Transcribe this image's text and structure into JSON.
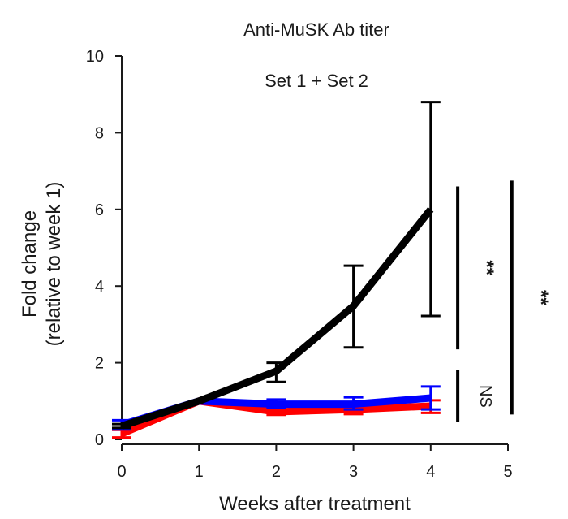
{
  "chart_data": {
    "type": "line",
    "title": "Anti-MuSK Ab titer",
    "subtitle": "Set 1 + Set 2",
    "xlabel": "Weeks after treatment",
    "ylabel_line1": "Fold change",
    "ylabel_line2": "(relative to week 1)",
    "xlim": [
      0,
      5
    ],
    "ylim": [
      0,
      10
    ],
    "xticks": [
      0,
      1,
      2,
      3,
      4,
      5
    ],
    "yticks": [
      0,
      2,
      4,
      6,
      8,
      10
    ],
    "xtick_labels": [
      "0",
      "1",
      "2",
      "3",
      "4",
      "5"
    ],
    "ytick_labels": [
      "0",
      "2",
      "4",
      "6",
      "8",
      "10"
    ],
    "grid": false,
    "legend": "none",
    "series": [
      {
        "color": "#ff0000",
        "x": [
          0,
          1,
          2,
          3,
          4
        ],
        "y": [
          0.15,
          1.0,
          0.72,
          0.78,
          0.87
        ],
        "err_low": [
          0.1,
          0.0,
          0.08,
          0.12,
          0.18
        ],
        "err_high": [
          0.1,
          0.0,
          0.1,
          0.14,
          0.15
        ]
      },
      {
        "color": "#0000ff",
        "x": [
          0,
          1,
          2,
          3,
          4
        ],
        "y": [
          0.38,
          1.0,
          0.92,
          0.92,
          1.08
        ],
        "err_low": [
          0.12,
          0.0,
          0.1,
          0.14,
          0.3
        ],
        "err_high": [
          0.12,
          0.0,
          0.12,
          0.18,
          0.3
        ]
      },
      {
        "color": "#000000",
        "x": [
          0,
          1,
          2,
          3,
          4
        ],
        "y": [
          0.35,
          1.0,
          1.78,
          3.48,
          6.0
        ],
        "err_low": [
          0.05,
          0.0,
          0.28,
          1.08,
          2.78
        ],
        "err_high": [
          0.05,
          0.0,
          0.22,
          1.05,
          2.8
        ]
      }
    ],
    "significance": [
      {
        "label": "**",
        "y_from": 2.35,
        "y_to": 6.6,
        "x": 4.35
      },
      {
        "label": "NS",
        "y_from": 0.45,
        "y_to": 1.8,
        "x": 4.35
      },
      {
        "label": "**",
        "y_from": 0.65,
        "y_to": 6.75,
        "x": 5.05
      }
    ]
  }
}
